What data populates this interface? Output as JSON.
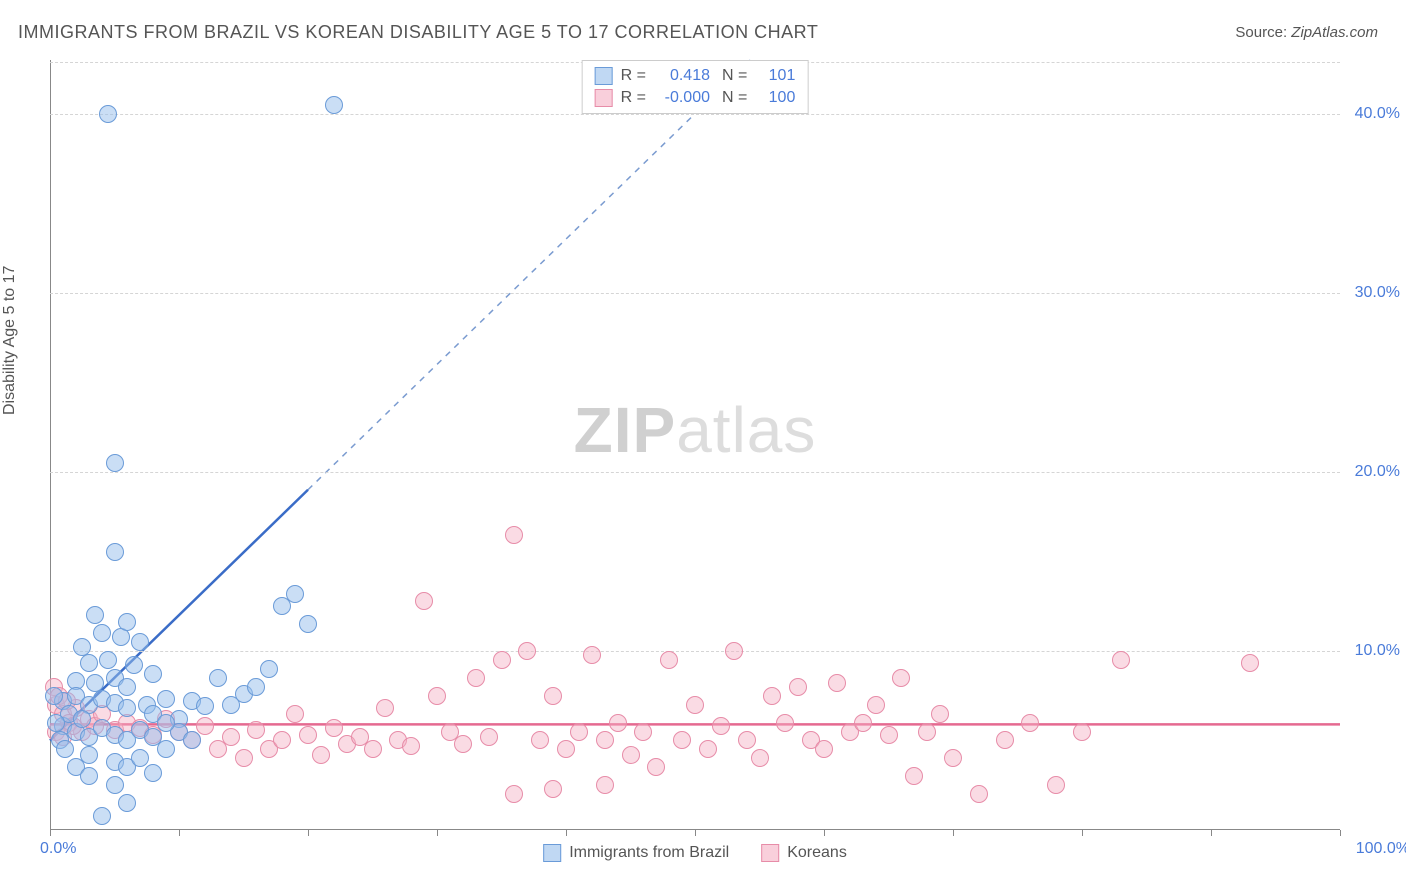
{
  "title": "IMMIGRANTS FROM BRAZIL VS KOREAN DISABILITY AGE 5 TO 17 CORRELATION CHART",
  "source_label": "Source:",
  "source_name": "ZipAtlas.com",
  "ylabel": "Disability Age 5 to 17",
  "watermark_bold": "ZIP",
  "watermark_rest": "atlas",
  "chart": {
    "type": "scatter",
    "xlim": [
      0,
      100
    ],
    "ylim": [
      0,
      43
    ],
    "ytick_step": 10,
    "ytick_labels": [
      "10.0%",
      "20.0%",
      "30.0%",
      "40.0%"
    ],
    "xtick_min_label": "0.0%",
    "xtick_max_label": "100.0%",
    "xticks": [
      0,
      10,
      20,
      30,
      40,
      50,
      60,
      70,
      80,
      90,
      100
    ],
    "grid_color": "#d5d5d5",
    "background_color": "#ffffff",
    "axis_color": "#888888",
    "tick_label_color": "#4a7bd9",
    "marker_size": 18,
    "series_blue": {
      "name": "Immigrants from Brazil",
      "fill_color": "rgba(150,190,235,0.5)",
      "stroke_color": "#6a9bd8",
      "R": "0.418",
      "N": "101",
      "trend": {
        "x1": 0,
        "y1": 5.0,
        "x2": 20,
        "y2": 19.0,
        "color": "#3a6cc7",
        "width": 2.5,
        "dashed_extend_to_x": 60
      },
      "points": [
        [
          4.5,
          40.0
        ],
        [
          22,
          40.5
        ],
        [
          5,
          20.5
        ],
        [
          5,
          15.5
        ],
        [
          3.5,
          12
        ],
        [
          4,
          11
        ],
        [
          2.5,
          10.2
        ],
        [
          5.5,
          10.8
        ],
        [
          6,
          11.6
        ],
        [
          7,
          10.5
        ],
        [
          3,
          9.3
        ],
        [
          4.5,
          9.5
        ],
        [
          6.5,
          9.2
        ],
        [
          8,
          8.7
        ],
        [
          2,
          8.3
        ],
        [
          3.5,
          8.2
        ],
        [
          5,
          8.5
        ],
        [
          6,
          8.0
        ],
        [
          1,
          7.2
        ],
        [
          2,
          7.5
        ],
        [
          3,
          7.0
        ],
        [
          4,
          7.3
        ],
        [
          5,
          7.1
        ],
        [
          6,
          6.8
        ],
        [
          7.5,
          7.0
        ],
        [
          8,
          6.5
        ],
        [
          9,
          7.3
        ],
        [
          10,
          6.2
        ],
        [
          11,
          7.2
        ],
        [
          12,
          6.9
        ],
        [
          13,
          8.5
        ],
        [
          14,
          7.0
        ],
        [
          15,
          7.6
        ],
        [
          16,
          8.0
        ],
        [
          18,
          12.5
        ],
        [
          19,
          13.2
        ],
        [
          20,
          11.5
        ],
        [
          17,
          9.0
        ],
        [
          1,
          5.8
        ],
        [
          2,
          5.5
        ],
        [
          3,
          5.2
        ],
        [
          4,
          5.7
        ],
        [
          5,
          5.3
        ],
        [
          6,
          5.0
        ],
        [
          7,
          5.6
        ],
        [
          8,
          5.2
        ],
        [
          3,
          4.2
        ],
        [
          5,
          3.8
        ],
        [
          6,
          3.5
        ],
        [
          7,
          4.0
        ],
        [
          5,
          2.5
        ],
        [
          8,
          3.2
        ],
        [
          6,
          1.5
        ],
        [
          9,
          4.5
        ],
        [
          1.5,
          6.5
        ],
        [
          2.5,
          6.2
        ],
        [
          0.5,
          6.0
        ],
        [
          0.8,
          5.0
        ],
        [
          1.2,
          4.5
        ],
        [
          0.3,
          7.5
        ],
        [
          4,
          0.8
        ],
        [
          10,
          5.5
        ],
        [
          11,
          5.0
        ],
        [
          9,
          6.0
        ],
        [
          2,
          3.5
        ],
        [
          3,
          3.0
        ]
      ]
    },
    "series_pink": {
      "name": "Koreans",
      "fill_color": "rgba(245,175,195,0.45)",
      "stroke_color": "#e78ca8",
      "R": "-0.000",
      "N": "100",
      "trend": {
        "x1": 0,
        "y1": 5.9,
        "x2": 100,
        "y2": 5.9,
        "color": "#e56990",
        "width": 2.5
      },
      "points": [
        [
          0.5,
          7.0
        ],
        [
          1,
          6.5
        ],
        [
          1.5,
          6.0
        ],
        [
          2,
          6.8
        ],
        [
          2.5,
          5.5
        ],
        [
          3,
          6.2
        ],
        [
          3.5,
          5.8
        ],
        [
          4,
          6.5
        ],
        [
          5,
          5.6
        ],
        [
          6,
          6.0
        ],
        [
          7,
          5.7
        ],
        [
          8,
          5.3
        ],
        [
          9,
          6.2
        ],
        [
          10,
          5.5
        ],
        [
          11,
          5.0
        ],
        [
          12,
          5.8
        ],
        [
          13,
          4.5
        ],
        [
          14,
          5.2
        ],
        [
          15,
          4.0
        ],
        [
          16,
          5.6
        ],
        [
          17,
          4.5
        ],
        [
          18,
          5.0
        ],
        [
          19,
          6.5
        ],
        [
          20,
          5.3
        ],
        [
          21,
          4.2
        ],
        [
          22,
          5.7
        ],
        [
          23,
          4.8
        ],
        [
          24,
          5.2
        ],
        [
          25,
          4.5
        ],
        [
          26,
          6.8
        ],
        [
          27,
          5.0
        ],
        [
          28,
          4.7
        ],
        [
          29,
          12.8
        ],
        [
          30,
          7.5
        ],
        [
          31,
          5.5
        ],
        [
          32,
          4.8
        ],
        [
          33,
          8.5
        ],
        [
          34,
          5.2
        ],
        [
          35,
          9.5
        ],
        [
          36,
          16.5
        ],
        [
          37,
          10.0
        ],
        [
          38,
          5.0
        ],
        [
          39,
          7.5
        ],
        [
          40,
          4.5
        ],
        [
          41,
          5.5
        ],
        [
          42,
          9.8
        ],
        [
          43,
          5.0
        ],
        [
          44,
          6.0
        ],
        [
          45,
          4.2
        ],
        [
          46,
          5.5
        ],
        [
          47,
          3.5
        ],
        [
          48,
          9.5
        ],
        [
          49,
          5.0
        ],
        [
          50,
          7.0
        ],
        [
          51,
          4.5
        ],
        [
          52,
          5.8
        ],
        [
          53,
          10.0
        ],
        [
          54,
          5.0
        ],
        [
          55,
          4.0
        ],
        [
          56,
          7.5
        ],
        [
          57,
          6.0
        ],
        [
          58,
          8.0
        ],
        [
          59,
          5.0
        ],
        [
          60,
          4.5
        ],
        [
          61,
          8.2
        ],
        [
          62,
          5.5
        ],
        [
          63,
          6.0
        ],
        [
          64,
          7.0
        ],
        [
          65,
          5.3
        ],
        [
          66,
          8.5
        ],
        [
          67,
          3.0
        ],
        [
          68,
          5.5
        ],
        [
          69,
          6.5
        ],
        [
          70,
          4.0
        ],
        [
          72,
          2.0
        ],
        [
          74,
          5.0
        ],
        [
          76,
          6.0
        ],
        [
          78,
          2.5
        ],
        [
          80,
          5.5
        ],
        [
          43,
          2.5
        ],
        [
          39,
          2.3
        ],
        [
          83,
          9.5
        ],
        [
          93,
          9.3
        ],
        [
          36,
          2.0
        ],
        [
          0.3,
          8.0
        ],
        [
          0.7,
          7.5
        ],
        [
          1.3,
          7.2
        ],
        [
          1.8,
          5.8
        ],
        [
          0.5,
          5.5
        ],
        [
          1.0,
          5.2
        ]
      ]
    }
  },
  "legend_top": {
    "r_label": "R =",
    "n_label": "N ="
  },
  "legend_bottom": {
    "items": [
      "Immigrants from Brazil",
      "Koreans"
    ]
  }
}
